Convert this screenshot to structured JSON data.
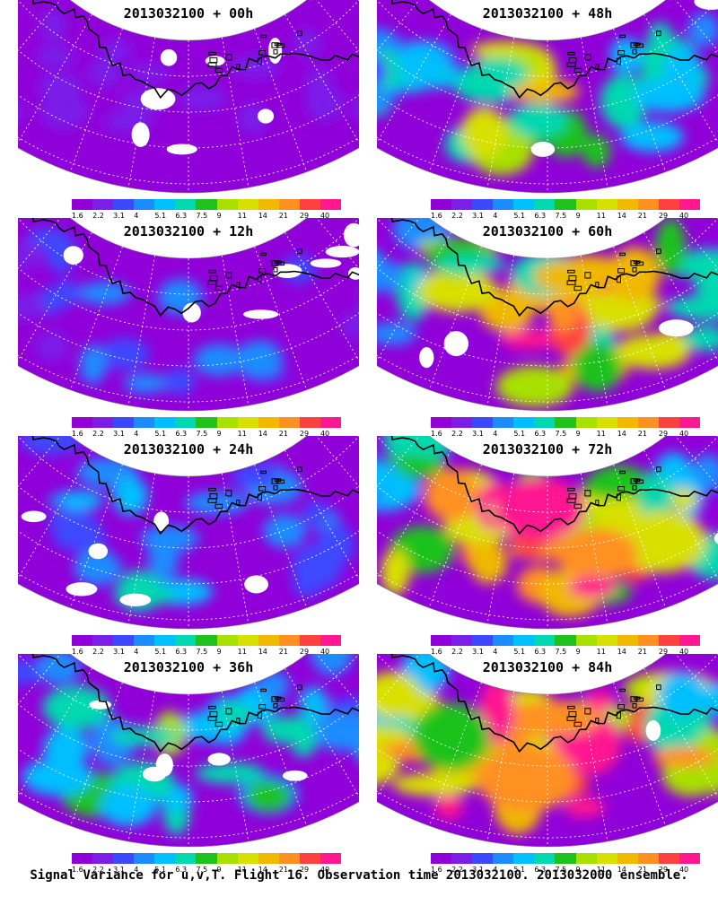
{
  "footer": "Signal Variance for u,v,T. Flight 16. Observation time 2013032100. 2013032000 ensemble.",
  "colorbar": {
    "ticks": [
      "1.6",
      "2.2",
      "3.1",
      "4",
      "5.1",
      "6.3",
      "7.5",
      "9",
      "11",
      "14",
      "21",
      "29",
      "40"
    ],
    "colors": [
      "#9000d8",
      "#7a1ee8",
      "#3c48ff",
      "#1a8cff",
      "#00bfff",
      "#00d8b0",
      "#1ec21e",
      "#a8e000",
      "#d8e000",
      "#f0b800",
      "#ff9020",
      "#ff4040",
      "#ff1890"
    ]
  },
  "panels": [
    {
      "title": "2013032100 + 00h",
      "lead_hours": 0
    },
    {
      "title": "2013032100 + 48h",
      "lead_hours": 48
    },
    {
      "title": "2013032100 + 12h",
      "lead_hours": 12
    },
    {
      "title": "2013032100 + 60h",
      "lead_hours": 60
    },
    {
      "title": "2013032100 + 24h",
      "lead_hours": 24
    },
    {
      "title": "2013032100 + 72h",
      "lead_hours": 72
    },
    {
      "title": "2013032100 + 36h",
      "lead_hours": 36
    },
    {
      "title": "2013032100 + 84h",
      "lead_hours": 84
    }
  ]
}
